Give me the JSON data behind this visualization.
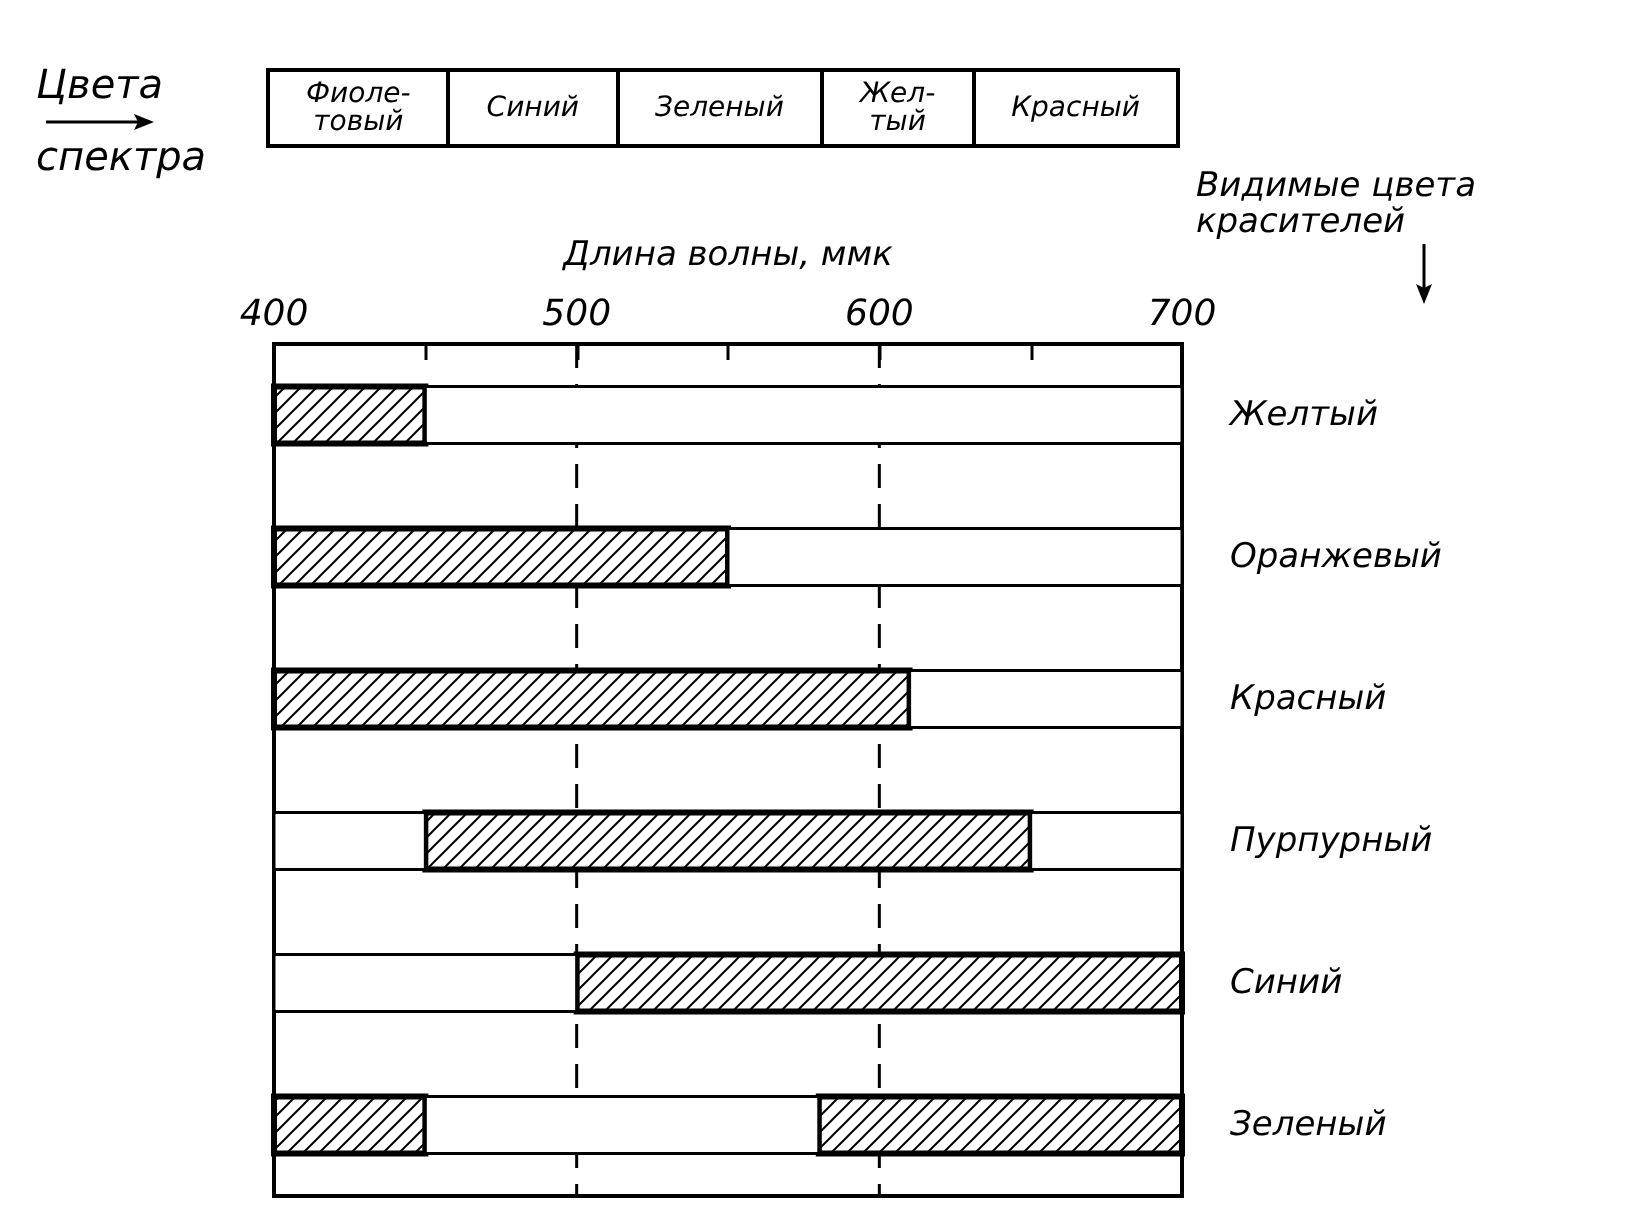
{
  "chart_data": [
    {
      "type": "other",
      "annotations": [
        "Цвета спектра",
        "Фиоле-\nтовый",
        "Синий",
        "Зеленый",
        "Жел-\nтый",
        "Красный"
      ]
    },
    {
      "type": "bar",
      "orientation": "horizontal",
      "xlabel": "Длина волны, ммк",
      "ylabel": "Видимые цвета красителей",
      "categories": [
        "Желтый",
        "Оранжевый",
        "Красный",
        "Пурпурный",
        "Синий",
        "Зеленый"
      ],
      "series": [
        {
          "color": "#000000",
          "base": [
            400,
            400,
            400,
            450,
            500,
            400
          ],
          "values": [
            50,
            150,
            210,
            200,
            200,
            50
          ]
        },
        {
          "color": "#000000",
          "base": [
            null,
            null,
            null,
            null,
            null,
            580
          ],
          "values": [
            null,
            null,
            null,
            null,
            null,
            120
          ]
        },
        {
          "color": "#ffffff",
          "base": [
            450,
            550,
            610,
            400,
            400,
            450
          ],
          "values": [
            250,
            150,
            90,
            50,
            100,
            130
          ]
        },
        {
          "color": "#ffffff",
          "base": [
            null,
            null,
            null,
            650,
            null,
            null
          ],
          "values": [
            null,
            null,
            null,
            50,
            null,
            null
          ]
        }
      ],
      "xlim": [
        400,
        700
      ],
      "xticks": [
        400,
        {
          "value": 450,
          "label": null
        },
        500,
        {
          "value": 550,
          "label": null
        },
        600,
        {
          "value": 650,
          "label": null
        },
        700
      ],
      "grid": "x"
    }
  ]
}
